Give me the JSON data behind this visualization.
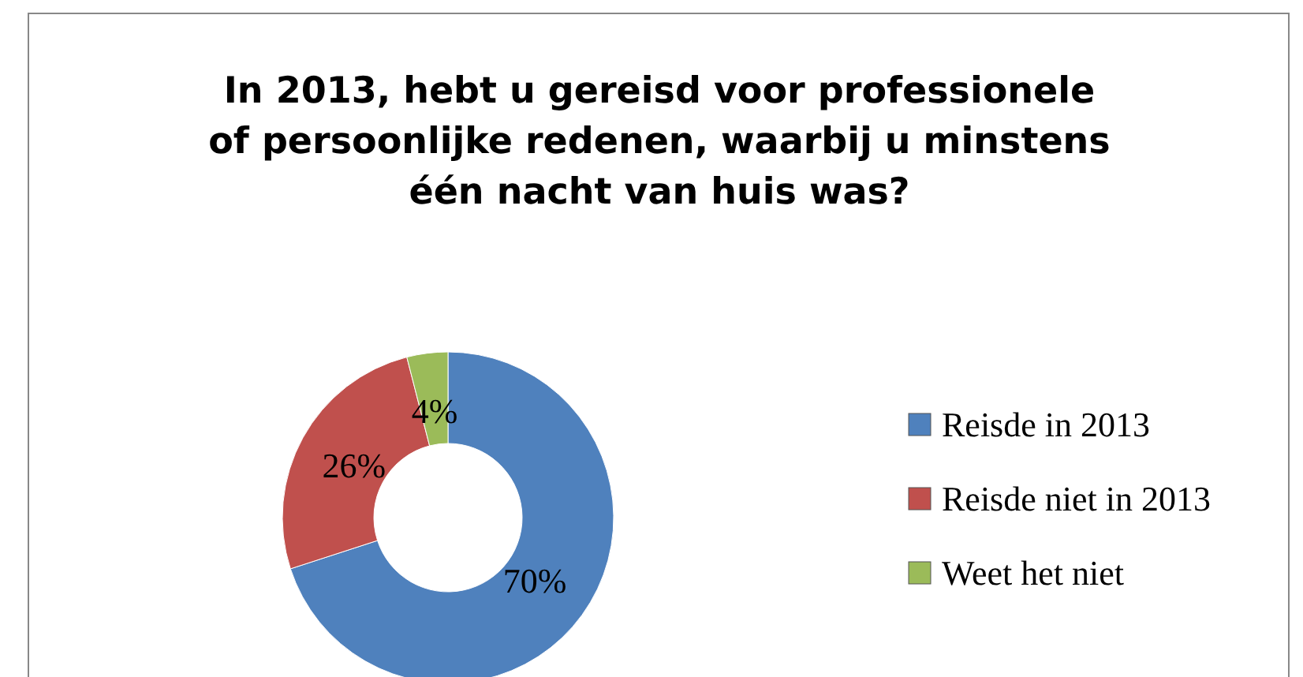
{
  "chart_data": {
    "type": "donut",
    "title": "In 2013, hebt u gereisd voor professionele of persoonlijke redenen, waarbij u minstens één nacht van huis was?",
    "categories": [
      "Reisde in 2013",
      "Reisde niet in 2013",
      "Weet het niet"
    ],
    "values": [
      70,
      26,
      4
    ],
    "colors": [
      "#4f81bd",
      "#c0504d",
      "#9bbb59"
    ],
    "value_labels": [
      "70%",
      "26%",
      "4%"
    ],
    "legend": "right"
  }
}
